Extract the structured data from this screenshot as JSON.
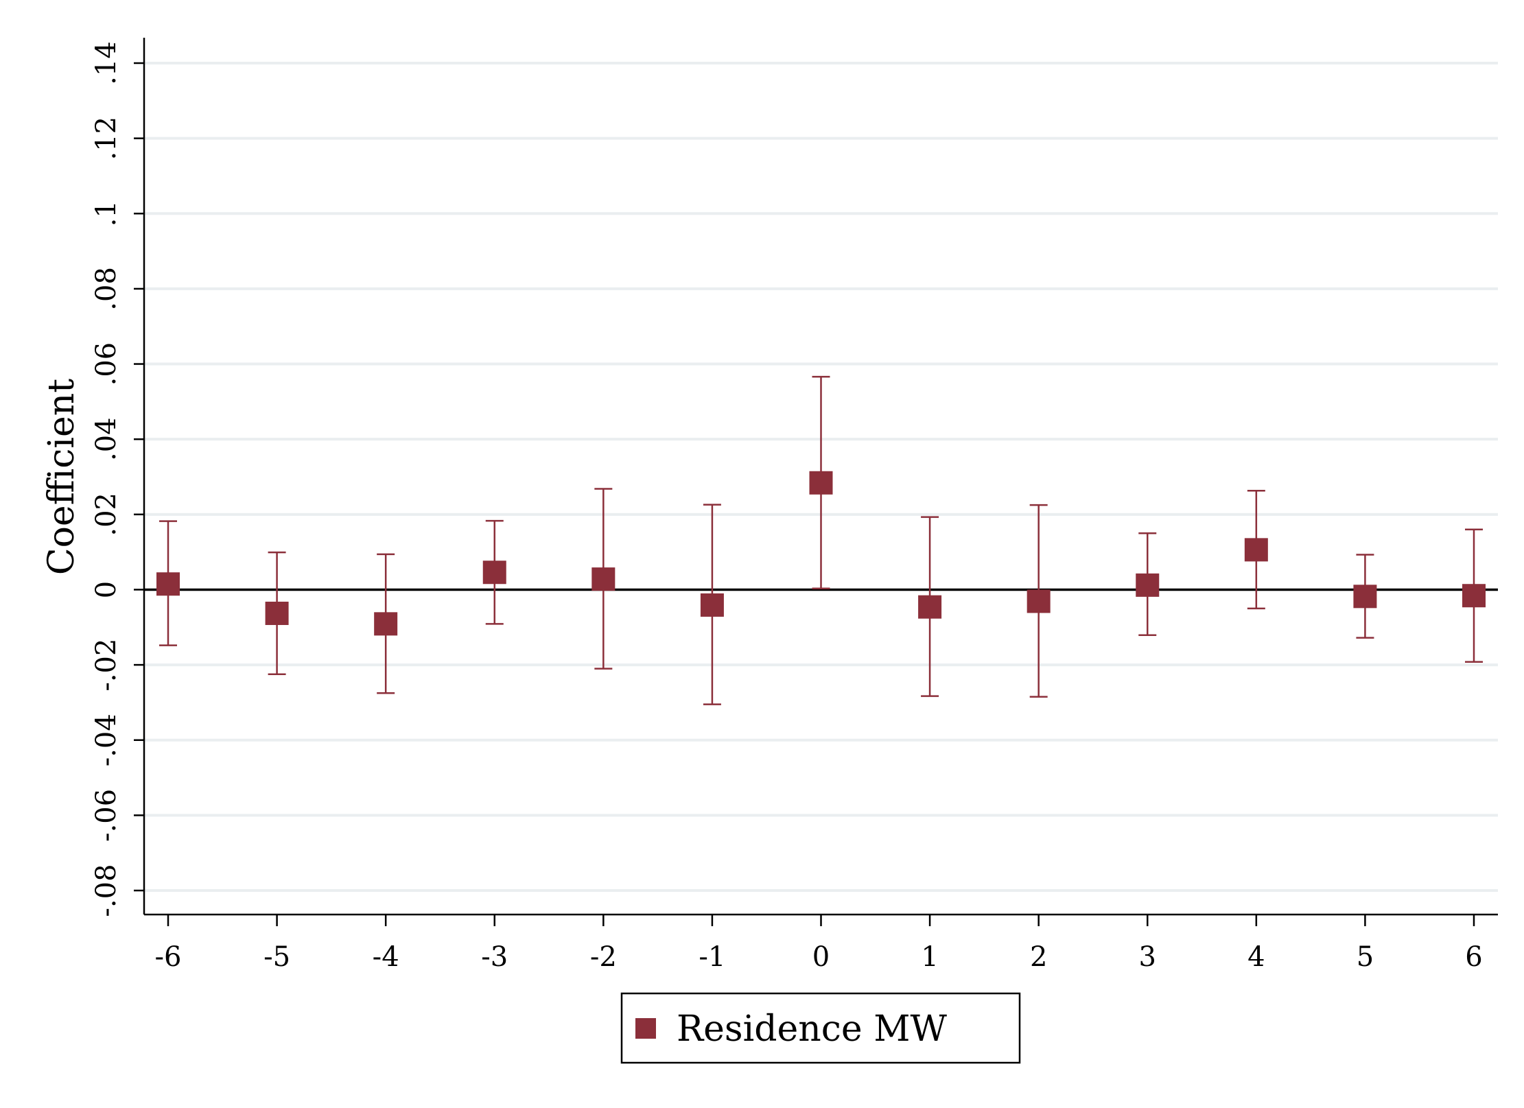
{
  "chart_data": {
    "type": "scatter",
    "title": "",
    "xlabel": "",
    "ylabel": "Coefficient",
    "x": [
      -6,
      -5,
      -4,
      -3,
      -2,
      -1,
      0,
      1,
      2,
      3,
      4,
      5,
      6
    ],
    "xticks": [
      "-6",
      "-5",
      "-4",
      "-3",
      "-2",
      "-1",
      "0",
      "1",
      "2",
      "3",
      "4",
      "5",
      "6"
    ],
    "xlim": [
      -6.22,
      6.22
    ],
    "ylim": [
      -0.086,
      0.146
    ],
    "yticks": [
      -0.08,
      -0.06,
      -0.04,
      -0.02,
      0,
      0.02,
      0.04,
      0.06,
      0.08,
      0.1,
      0.12,
      0.14
    ],
    "ytick_labels": [
      "-.08",
      "-.06",
      "-.04",
      "-.02",
      "0",
      ".02",
      ".04",
      ".06",
      ".08",
      ".1",
      ".12",
      ".14"
    ],
    "grid": true,
    "zero_line": true,
    "legend_position": "bottom-center",
    "series": [
      {
        "name": "Residence MW",
        "color": "#8b2f3a",
        "marker": "square",
        "values": [
          0.0015,
          -0.0063,
          -0.0091,
          0.0046,
          0.0028,
          -0.0041,
          0.0284,
          -0.0046,
          -0.0031,
          0.0012,
          0.0106,
          -0.0018,
          -0.0016
        ],
        "ci_low": [
          -0.0148,
          -0.0225,
          -0.0275,
          -0.0091,
          -0.021,
          -0.0305,
          0.0003,
          -0.0283,
          -0.0285,
          -0.0121,
          -0.005,
          -0.0128,
          -0.0192
        ],
        "ci_high": [
          0.0182,
          0.0099,
          0.0094,
          0.0183,
          0.0268,
          0.0226,
          0.0566,
          0.0193,
          0.0225,
          0.015,
          0.0263,
          0.0093,
          0.016
        ]
      }
    ]
  },
  "colors": {
    "series": "#8b2f3a",
    "grid": "#eaeef0",
    "axis": "#000000"
  }
}
